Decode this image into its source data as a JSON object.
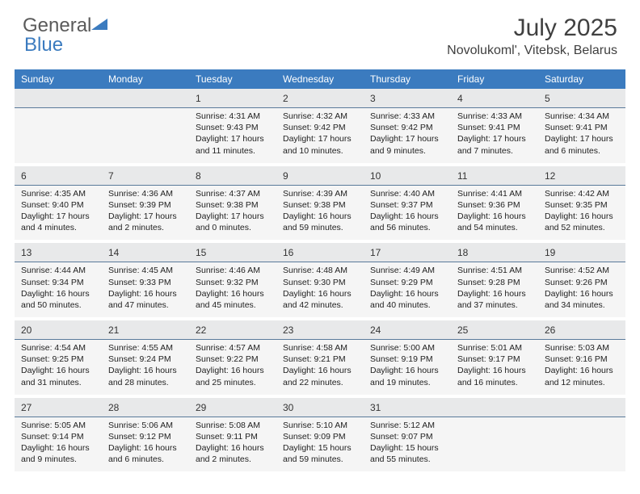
{
  "brand": {
    "part1": "General",
    "part2": "Blue"
  },
  "title": "July 2025",
  "location": "Novolukoml', Vitebsk, Belarus",
  "colors": {
    "header_bg": "#3b7bbf",
    "header_text": "#ffffff",
    "daynum_bg": "#e8e9ea",
    "daynum_border": "#5a7a9a",
    "content_bg": "#f5f5f5",
    "title_color": "#404040",
    "logo_gray": "#5a5a5a",
    "logo_blue": "#3b7bbf"
  },
  "dayNames": [
    "Sunday",
    "Monday",
    "Tuesday",
    "Wednesday",
    "Thursday",
    "Friday",
    "Saturday"
  ],
  "weeks": [
    [
      null,
      null,
      {
        "n": "1",
        "sr": "4:31 AM",
        "ss": "9:43 PM",
        "dl": "17 hours and 11 minutes."
      },
      {
        "n": "2",
        "sr": "4:32 AM",
        "ss": "9:42 PM",
        "dl": "17 hours and 10 minutes."
      },
      {
        "n": "3",
        "sr": "4:33 AM",
        "ss": "9:42 PM",
        "dl": "17 hours and 9 minutes."
      },
      {
        "n": "4",
        "sr": "4:33 AM",
        "ss": "9:41 PM",
        "dl": "17 hours and 7 minutes."
      },
      {
        "n": "5",
        "sr": "4:34 AM",
        "ss": "9:41 PM",
        "dl": "17 hours and 6 minutes."
      }
    ],
    [
      {
        "n": "6",
        "sr": "4:35 AM",
        "ss": "9:40 PM",
        "dl": "17 hours and 4 minutes."
      },
      {
        "n": "7",
        "sr": "4:36 AM",
        "ss": "9:39 PM",
        "dl": "17 hours and 2 minutes."
      },
      {
        "n": "8",
        "sr": "4:37 AM",
        "ss": "9:38 PM",
        "dl": "17 hours and 0 minutes."
      },
      {
        "n": "9",
        "sr": "4:39 AM",
        "ss": "9:38 PM",
        "dl": "16 hours and 59 minutes."
      },
      {
        "n": "10",
        "sr": "4:40 AM",
        "ss": "9:37 PM",
        "dl": "16 hours and 56 minutes."
      },
      {
        "n": "11",
        "sr": "4:41 AM",
        "ss": "9:36 PM",
        "dl": "16 hours and 54 minutes."
      },
      {
        "n": "12",
        "sr": "4:42 AM",
        "ss": "9:35 PM",
        "dl": "16 hours and 52 minutes."
      }
    ],
    [
      {
        "n": "13",
        "sr": "4:44 AM",
        "ss": "9:34 PM",
        "dl": "16 hours and 50 minutes."
      },
      {
        "n": "14",
        "sr": "4:45 AM",
        "ss": "9:33 PM",
        "dl": "16 hours and 47 minutes."
      },
      {
        "n": "15",
        "sr": "4:46 AM",
        "ss": "9:32 PM",
        "dl": "16 hours and 45 minutes."
      },
      {
        "n": "16",
        "sr": "4:48 AM",
        "ss": "9:30 PM",
        "dl": "16 hours and 42 minutes."
      },
      {
        "n": "17",
        "sr": "4:49 AM",
        "ss": "9:29 PM",
        "dl": "16 hours and 40 minutes."
      },
      {
        "n": "18",
        "sr": "4:51 AM",
        "ss": "9:28 PM",
        "dl": "16 hours and 37 minutes."
      },
      {
        "n": "19",
        "sr": "4:52 AM",
        "ss": "9:26 PM",
        "dl": "16 hours and 34 minutes."
      }
    ],
    [
      {
        "n": "20",
        "sr": "4:54 AM",
        "ss": "9:25 PM",
        "dl": "16 hours and 31 minutes."
      },
      {
        "n": "21",
        "sr": "4:55 AM",
        "ss": "9:24 PM",
        "dl": "16 hours and 28 minutes."
      },
      {
        "n": "22",
        "sr": "4:57 AM",
        "ss": "9:22 PM",
        "dl": "16 hours and 25 minutes."
      },
      {
        "n": "23",
        "sr": "4:58 AM",
        "ss": "9:21 PM",
        "dl": "16 hours and 22 minutes."
      },
      {
        "n": "24",
        "sr": "5:00 AM",
        "ss": "9:19 PM",
        "dl": "16 hours and 19 minutes."
      },
      {
        "n": "25",
        "sr": "5:01 AM",
        "ss": "9:17 PM",
        "dl": "16 hours and 16 minutes."
      },
      {
        "n": "26",
        "sr": "5:03 AM",
        "ss": "9:16 PM",
        "dl": "16 hours and 12 minutes."
      }
    ],
    [
      {
        "n": "27",
        "sr": "5:05 AM",
        "ss": "9:14 PM",
        "dl": "16 hours and 9 minutes."
      },
      {
        "n": "28",
        "sr": "5:06 AM",
        "ss": "9:12 PM",
        "dl": "16 hours and 6 minutes."
      },
      {
        "n": "29",
        "sr": "5:08 AM",
        "ss": "9:11 PM",
        "dl": "16 hours and 2 minutes."
      },
      {
        "n": "30",
        "sr": "5:10 AM",
        "ss": "9:09 PM",
        "dl": "15 hours and 59 minutes."
      },
      {
        "n": "31",
        "sr": "5:12 AM",
        "ss": "9:07 PM",
        "dl": "15 hours and 55 minutes."
      },
      null,
      null
    ]
  ],
  "labels": {
    "sunrise": "Sunrise:",
    "sunset": "Sunset:",
    "daylight": "Daylight:"
  }
}
